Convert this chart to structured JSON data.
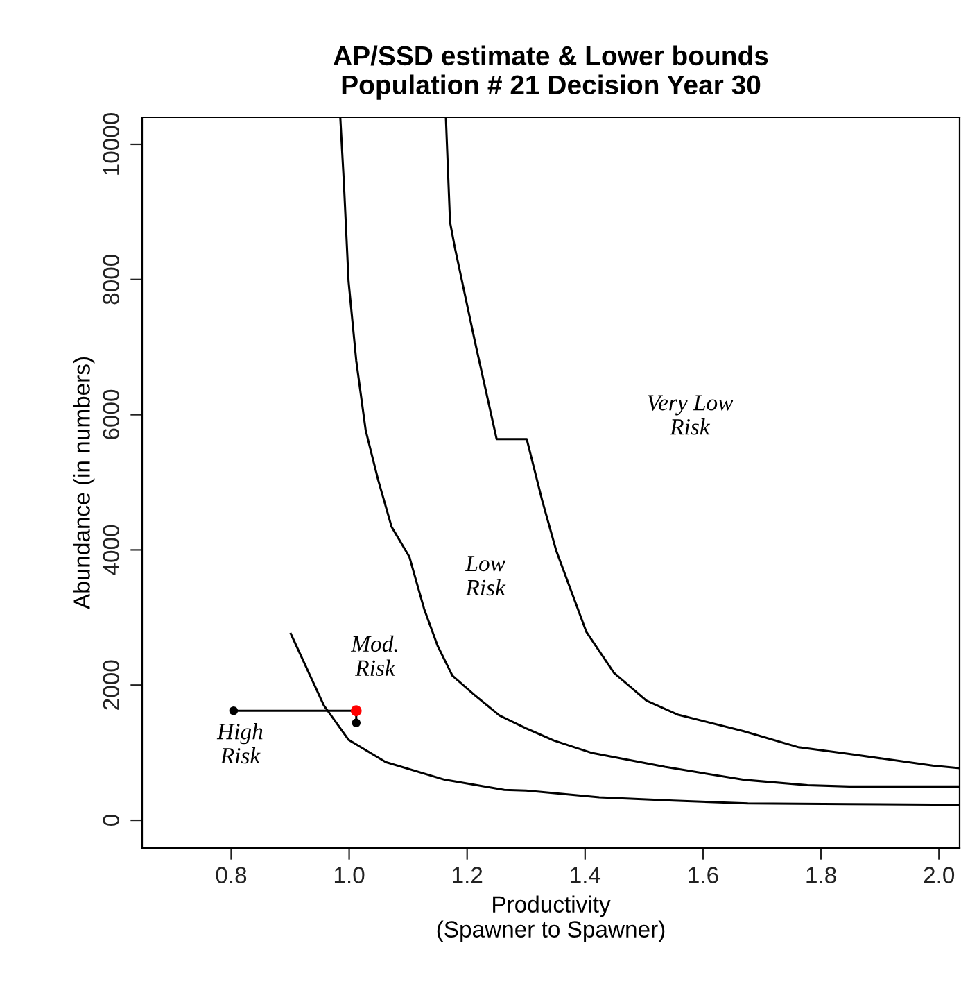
{
  "chart_data": {
    "type": "line",
    "title": "AP/SSD estimate & Lower bounds\nPopulation # 21 Decision Year 30",
    "xlabel": "Productivity\n(Spawner to Spawner)",
    "ylabel": "Abundance (in numbers)",
    "xlim": [
      0.649,
      2.035
    ],
    "ylim": [
      -410,
      10400
    ],
    "xticks": [
      0.8,
      {
        "value": 1.0,
        "label": "1.0"
      },
      1.2,
      1.4,
      1.6,
      1.8,
      {
        "value": 2.0,
        "label": "2.0"
      }
    ],
    "yticks": [
      0,
      2000,
      4000,
      6000,
      8000,
      10000
    ],
    "grid": false,
    "legend": false,
    "marker": "none",
    "line_style": "solid",
    "series": [
      {
        "color": "#000000",
        "x": [
          0.901,
          0.957,
          0.999,
          1.062,
          1.162,
          1.263,
          1.3,
          1.424,
          1.55,
          1.676,
          1.847,
          2.035
        ],
        "values": [
          2760,
          1700,
          1190,
          860,
          600,
          450,
          440,
          340,
          290,
          250,
          240,
          230
        ]
      },
      {
        "color": "#000000",
        "x": [
          0.985,
          0.991,
          0.999,
          1.012,
          1.028,
          1.049,
          1.072,
          1.102,
          1.127,
          1.15,
          1.175,
          1.213,
          1.255,
          1.3,
          1.347,
          1.41,
          1.535,
          1.668,
          1.777,
          1.848,
          2.035
        ],
        "values": [
          10390,
          9440,
          7970,
          6800,
          5770,
          5040,
          4340,
          3900,
          3130,
          2580,
          2140,
          1850,
          1550,
          1360,
          1180,
          1000,
          790,
          600,
          520,
          500,
          500
        ]
      },
      {
        "color": "#000000",
        "x": [
          1.164,
          1.171,
          1.179,
          1.213,
          1.25,
          1.301,
          1.327,
          1.351,
          1.402,
          1.449,
          1.504,
          1.558,
          1.668,
          1.762,
          1.848,
          1.989,
          2.035
        ],
        "values": [
          10390,
          8850,
          8480,
          7090,
          5640,
          5640,
          4740,
          3990,
          2790,
          2180,
          1770,
          1560,
          1320,
          1080,
          980,
          810,
          770
        ]
      },
      {
        "color": "#000000",
        "marker": "circle",
        "x": [
          0.804,
          1.012
        ],
        "values": [
          1620,
          1620
        ]
      },
      {
        "color": "#000000",
        "marker": "circle",
        "x": [
          1.012,
          1.012
        ],
        "values": [
          1620,
          1440
        ]
      },
      {
        "type": "scatter",
        "color": "#ff0000",
        "marker": "circle",
        "x": [
          1.012
        ],
        "values": [
          1620
        ]
      }
    ],
    "annotations": [
      "Very Low\nRisk",
      "Low\nRisk",
      "Mod.\nRisk",
      "High\nRisk"
    ]
  }
}
